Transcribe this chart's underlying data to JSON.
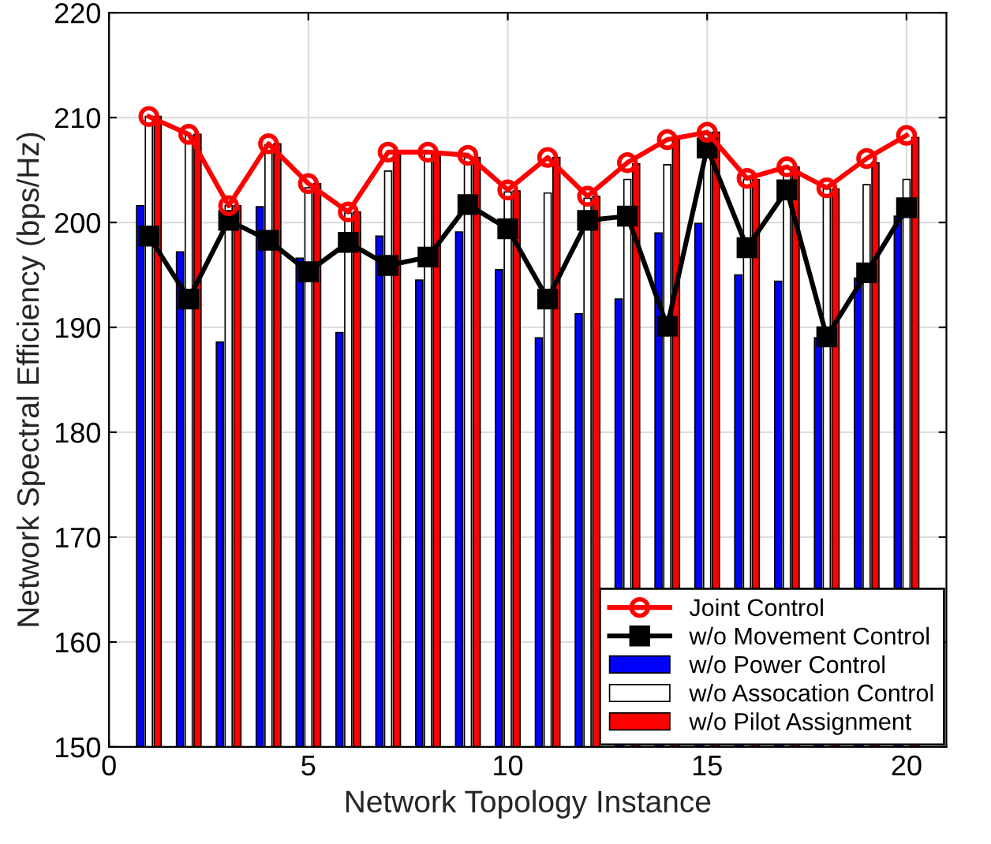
{
  "chart_data": {
    "type": "bar",
    "xlabel": "Network Topology Instance",
    "ylabel": "Network Spectral Efficiency (bps/Hz)",
    "x": [
      1,
      2,
      3,
      4,
      5,
      6,
      7,
      8,
      9,
      10,
      11,
      12,
      13,
      14,
      15,
      16,
      17,
      18,
      19,
      20
    ],
    "xlim": [
      0,
      21
    ],
    "xticks": [
      0,
      5,
      10,
      15,
      20
    ],
    "ylim": [
      150,
      220
    ],
    "yticks": [
      150,
      160,
      170,
      180,
      190,
      200,
      210,
      220
    ],
    "grid": true,
    "legend": "bottom right",
    "series": [
      {
        "name": "Joint Control",
        "type": "line",
        "color": "#ff0000",
        "marker": "circle",
        "values": [
          210.1,
          208.4,
          201.6,
          207.5,
          203.7,
          201.0,
          206.7,
          206.7,
          206.4,
          203.1,
          206.2,
          202.5,
          205.7,
          207.9,
          208.6,
          204.2,
          205.3,
          203.3,
          206.1,
          208.3
        ]
      },
      {
        "name": "w/o Movement Control",
        "type": "line",
        "color": "#000000",
        "marker": "square",
        "values": [
          198.7,
          192.7,
          200.2,
          198.3,
          195.3,
          198.1,
          195.9,
          196.7,
          201.7,
          199.4,
          192.7,
          200.2,
          200.6,
          190.1,
          207.1,
          197.6,
          203.1,
          189.1,
          195.2,
          201.4
        ]
      },
      {
        "name": "w/o Power Control",
        "color": "#0000ff",
        "values": [
          201.6,
          197.2,
          188.6,
          201.5,
          196.6,
          189.5,
          198.7,
          194.5,
          199.1,
          195.5,
          189.0,
          191.3,
          192.7,
          199.0,
          199.9,
          195.0,
          194.4,
          189.0,
          194.7,
          200.6
        ]
      },
      {
        "name": "w/o Assocation Control",
        "color": "#ffffff",
        "values": [
          210.1,
          208.3,
          201.6,
          207.4,
          203.3,
          200.9,
          204.9,
          206.6,
          206.2,
          202.9,
          202.8,
          202.3,
          204.1,
          205.5,
          208.6,
          204.1,
          205.1,
          203.2,
          203.6,
          204.1
        ]
      },
      {
        "name": "w/o Pilot Assignment",
        "color": "#ff0000",
        "values": [
          210.1,
          208.4,
          201.6,
          207.5,
          203.7,
          201.0,
          206.7,
          206.6,
          206.2,
          203.0,
          206.2,
          202.5,
          205.6,
          207.9,
          208.6,
          204.1,
          205.3,
          203.2,
          205.7,
          208.1
        ]
      }
    ]
  }
}
